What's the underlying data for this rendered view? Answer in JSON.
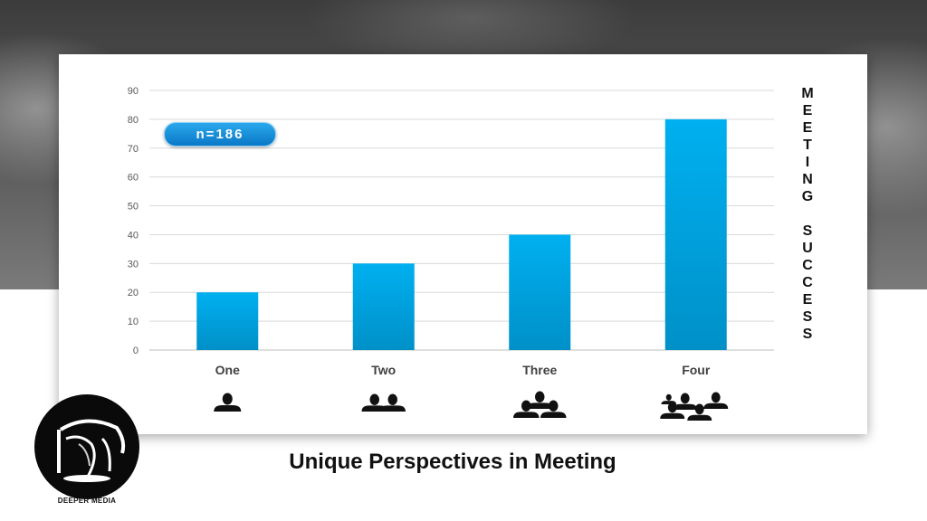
{
  "chart_data": {
    "type": "bar",
    "categories": [
      "One",
      "Two",
      "Three",
      "Four"
    ],
    "values": [
      20,
      30,
      40,
      80
    ],
    "ylim": [
      0,
      90
    ],
    "yticks": [
      "0",
      "10",
      "20",
      "30",
      "40",
      "50",
      "60",
      "70",
      "80",
      "90"
    ],
    "grid": true,
    "bar_color_top": "#00B0F0",
    "bar_color_bottom": "#0090C8",
    "people_counts": [
      1,
      2,
      3,
      4
    ]
  },
  "annotation": {
    "badge": "n=186"
  },
  "side_label": {
    "line1": "MEETING",
    "line2": "SUCCESS"
  },
  "footer": {
    "title": "Unique Perspectives in Meeting",
    "logo_text": "DEEPER MEDIA"
  }
}
